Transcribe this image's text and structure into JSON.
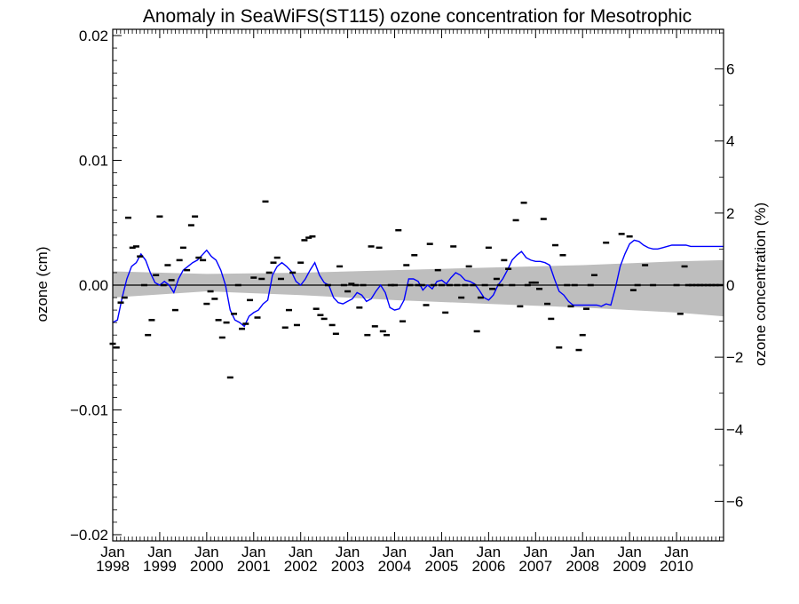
{
  "chart_data": {
    "type": "scatter",
    "title": "Anomaly in SeaWiFS(ST115) ozone concentration for Mesotrophic",
    "ylabel": "ozone (cm)",
    "ylabel_right": "ozone concentration (%)",
    "xlabel": "",
    "xlim": [
      1998.0,
      2011.0
    ],
    "ylim": [
      -0.0205,
      0.0205
    ],
    "ylim_right": [
      -7.1,
      7.1
    ],
    "x_ticks": [
      {
        "x": 1998,
        "label_top": "Jan",
        "label_bottom": "1998"
      },
      {
        "x": 1999,
        "label_top": "Jan",
        "label_bottom": "1999"
      },
      {
        "x": 2000,
        "label_top": "Jan",
        "label_bottom": "2000"
      },
      {
        "x": 2001,
        "label_top": "Jan",
        "label_bottom": "2001"
      },
      {
        "x": 2002,
        "label_top": "Jan",
        "label_bottom": "2002"
      },
      {
        "x": 2003,
        "label_top": "Jan",
        "label_bottom": "2003"
      },
      {
        "x": 2004,
        "label_top": "Jan",
        "label_bottom": "2004"
      },
      {
        "x": 2005,
        "label_top": "Jan",
        "label_bottom": "2005"
      },
      {
        "x": 2006,
        "label_top": "Jan",
        "label_bottom": "2006"
      },
      {
        "x": 2007,
        "label_top": "Jan",
        "label_bottom": "2007"
      },
      {
        "x": 2008,
        "label_top": "Jan",
        "label_bottom": "2008"
      },
      {
        "x": 2009,
        "label_top": "Jan",
        "label_bottom": "2009"
      },
      {
        "x": 2010,
        "label_top": "Jan",
        "label_bottom": "2010"
      }
    ],
    "y_ticks": [
      {
        "value": 0.02,
        "label": "0.02"
      },
      {
        "value": 0.01,
        "label": "0.01"
      },
      {
        "value": 0.0,
        "label": "0.00"
      },
      {
        "value": -0.01,
        "label": "−0.01"
      },
      {
        "value": -0.02,
        "label": "−0.02"
      }
    ],
    "y_right_ticks": [
      {
        "value": 6,
        "label": "6"
      },
      {
        "value": 4,
        "label": "4"
      },
      {
        "value": 2,
        "label": "2"
      },
      {
        "value": 0,
        "label": "0"
      },
      {
        "value": -2,
        "label": "−2"
      },
      {
        "value": -4,
        "label": "−4"
      },
      {
        "value": -6,
        "label": "−6"
      }
    ],
    "zero_line": 0.0,
    "trend_band": {
      "color": "#bebebe",
      "x": [
        1998.0,
        2000.0,
        2002.0,
        2004.0,
        2006.0,
        2008.0,
        2010.0,
        2011.0
      ],
      "upper": [
        0.0011,
        0.0009,
        0.001,
        0.0012,
        0.0014,
        0.0016,
        0.0019,
        0.002
      ],
      "lower": [
        -0.001,
        -0.0005,
        -0.0008,
        -0.0012,
        -0.0015,
        -0.0018,
        -0.0022,
        -0.0025
      ]
    },
    "series": [
      {
        "marker": "dash",
        "color": "#000000",
        "x": [
          1998.0,
          1998.08,
          1998.17,
          1998.25,
          1998.33,
          1998.42,
          1998.5,
          1998.58,
          1998.67,
          1998.75,
          1998.83,
          1998.92,
          1999.0,
          1999.08,
          1999.17,
          1999.25,
          1999.33,
          1999.42,
          1999.5,
          1999.58,
          1999.67,
          1999.75,
          1999.83,
          1999.92,
          2000.0,
          2000.08,
          2000.17,
          2000.25,
          2000.33,
          2000.42,
          2000.5,
          2000.58,
          2000.67,
          2000.75,
          2000.83,
          2000.92,
          2001.0,
          2001.08,
          2001.17,
          2001.25,
          2001.33,
          2001.42,
          2001.5,
          2001.58,
          2001.67,
          2001.75,
          2001.83,
          2001.92,
          2002.0,
          2002.08,
          2002.17,
          2002.25,
          2002.33,
          2002.42,
          2002.5,
          2002.58,
          2002.67,
          2002.75,
          2002.83,
          2002.92,
          2003.0,
          2003.08,
          2003.17,
          2003.25,
          2003.33,
          2003.42,
          2003.5,
          2003.58,
          2003.67,
          2003.75,
          2003.83,
          2003.92,
          2004.0,
          2004.08,
          2004.17,
          2004.25,
          2004.33,
          2004.42,
          2004.5,
          2004.58,
          2004.67,
          2004.75,
          2004.83,
          2004.92,
          2005.0,
          2005.08,
          2005.17,
          2005.25,
          2005.33,
          2005.42,
          2005.5,
          2005.58,
          2005.67,
          2005.75,
          2005.83,
          2005.92,
          2006.0,
          2006.08,
          2006.17,
          2006.25,
          2006.33,
          2006.42,
          2006.5,
          2006.58,
          2006.67,
          2006.75,
          2006.83,
          2006.92,
          2007.0,
          2007.08,
          2007.17,
          2007.25,
          2007.33,
          2007.42,
          2007.5,
          2007.58,
          2007.67,
          2007.75,
          2007.83,
          2007.92,
          2008.0,
          2008.08,
          2008.17,
          2008.25,
          2008.5,
          2008.83,
          2009.0,
          2009.08,
          2009.17,
          2009.33,
          2009.5,
          2010.0,
          2010.08,
          2010.17,
          2010.25,
          2010.33,
          2010.42,
          2010.5,
          2010.58,
          2010.67,
          2010.75,
          2010.83,
          2010.92
        ],
        "values": [
          -0.0047,
          -0.005,
          -0.0014,
          -0.001,
          0.0054,
          0.003,
          0.0031,
          0.0023,
          0.0,
          -0.004,
          -0.0028,
          0.0008,
          0.0055,
          0.0,
          0.0016,
          0.0004,
          -0.002,
          0.002,
          0.003,
          0.0012,
          0.0048,
          0.0055,
          0.0022,
          0.002,
          -0.0015,
          -0.0005,
          -0.0011,
          -0.0028,
          -0.0042,
          -0.003,
          -0.0074,
          -0.0023,
          0.0,
          -0.0035,
          -0.0031,
          -0.0012,
          0.0006,
          -0.0026,
          0.0005,
          0.0067,
          0.001,
          0.0018,
          0.0022,
          0.0005,
          -0.0034,
          -0.002,
          0.001,
          -0.0032,
          0.0018,
          0.0036,
          0.0038,
          0.0039,
          -0.0019,
          -0.0024,
          -0.0027,
          0.0,
          -0.0032,
          -0.0039,
          0.0015,
          0.0,
          -0.0005,
          0.0001,
          0.0,
          -0.0018,
          0.0,
          -0.004,
          0.0031,
          -0.0033,
          0.003,
          -0.0037,
          -0.004,
          0.0,
          0.0,
          0.0044,
          -0.0029,
          0.0016,
          0.0,
          0.0024,
          0.0,
          0.0,
          -0.0016,
          0.0033,
          0.0,
          0.0012,
          0.0,
          -0.0022,
          0.0,
          0.0031,
          0.0,
          -0.001,
          0.0,
          0.0015,
          0.0,
          -0.0037,
          -0.001,
          0.0,
          0.003,
          -0.0003,
          0.0005,
          0.0,
          0.002,
          0.0013,
          0.0,
          0.0052,
          -0.0017,
          0.0066,
          0.0,
          0.0002,
          0.0002,
          -0.0003,
          0.0053,
          -0.0015,
          -0.0027,
          0.0032,
          -0.005,
          0.0024,
          0.0,
          -0.0017,
          0.0,
          -0.0052,
          -0.004,
          -0.0019,
          0.0,
          0.0008,
          0.0034,
          0.0041,
          0.0039,
          -0.0004,
          0.0,
          0.0016,
          0.0,
          0.0,
          -0.0023,
          0.0015,
          0.0,
          0.0,
          0.0,
          0.0,
          0.0,
          0.0,
          0.0,
          0.0,
          0.0
        ]
      },
      {
        "marker": "line",
        "color": "#0000ff",
        "x": [
          1998.0,
          1998.1,
          1998.2,
          1998.3,
          1998.4,
          1998.5,
          1998.6,
          1998.7,
          1998.8,
          1998.9,
          1999.0,
          1999.1,
          1999.2,
          1999.3,
          1999.4,
          1999.5,
          1999.6,
          1999.7,
          1999.8,
          1999.9,
          2000.0,
          2000.1,
          2000.2,
          2000.3,
          2000.4,
          2000.5,
          2000.6,
          2000.7,
          2000.8,
          2000.9,
          2001.0,
          2001.1,
          2001.2,
          2001.3,
          2001.4,
          2001.5,
          2001.6,
          2001.7,
          2001.8,
          2001.9,
          2002.0,
          2002.1,
          2002.2,
          2002.3,
          2002.4,
          2002.5,
          2002.6,
          2002.7,
          2002.8,
          2002.9,
          2003.0,
          2003.1,
          2003.2,
          2003.3,
          2003.4,
          2003.5,
          2003.6,
          2003.7,
          2003.8,
          2003.9,
          2004.0,
          2004.1,
          2004.2,
          2004.3,
          2004.4,
          2004.5,
          2004.6,
          2004.7,
          2004.8,
          2004.9,
          2005.0,
          2005.1,
          2005.2,
          2005.3,
          2005.4,
          2005.5,
          2005.6,
          2005.7,
          2005.8,
          2005.9,
          2006.0,
          2006.1,
          2006.2,
          2006.3,
          2006.4,
          2006.5,
          2006.6,
          2006.7,
          2006.8,
          2006.9,
          2007.0,
          2007.1,
          2007.2,
          2007.3,
          2007.4,
          2007.5,
          2007.6,
          2007.7,
          2007.8,
          2007.9,
          2008.0,
          2008.1,
          2008.2,
          2008.3,
          2008.4,
          2008.5,
          2008.6,
          2008.7,
          2008.8,
          2008.9,
          2009.0,
          2009.1,
          2009.2,
          2009.3,
          2009.4,
          2009.5,
          2009.6,
          2009.7,
          2009.8,
          2009.9,
          2010.0,
          2010.1,
          2010.2,
          2010.3,
          2010.4,
          2010.5,
          2010.6,
          2010.7,
          2010.8,
          2010.9,
          2011.0
        ],
        "values": [
          -0.003,
          -0.0028,
          -0.001,
          0.0005,
          0.0015,
          0.0018,
          0.0025,
          0.002,
          0.001,
          0.0002,
          0.0,
          0.0003,
          0.0,
          -0.0006,
          0.0005,
          0.0012,
          0.0015,
          0.0018,
          0.002,
          0.0024,
          0.0028,
          0.0023,
          0.002,
          0.0012,
          0.0,
          -0.002,
          -0.0028,
          -0.003,
          -0.0033,
          -0.0025,
          -0.0022,
          -0.002,
          -0.0015,
          -0.0012,
          0.0008,
          0.0015,
          0.0018,
          0.0015,
          0.0011,
          0.0003,
          0.0,
          0.0005,
          0.0012,
          0.0018,
          0.0008,
          0.0002,
          0.0,
          -0.001,
          -0.0014,
          -0.0015,
          -0.0013,
          -0.0011,
          -0.0006,
          -0.0008,
          -0.0013,
          -0.0011,
          -0.0005,
          0.0,
          -0.0006,
          -0.0018,
          -0.002,
          -0.0019,
          -0.0012,
          0.0005,
          0.0005,
          0.0003,
          -0.0004,
          0.0,
          -0.0003,
          0.0003,
          0.0004,
          0.0001,
          0.0006,
          0.001,
          0.0008,
          0.0004,
          0.0003,
          0.0001,
          -0.0004,
          -0.001,
          -0.0012,
          -0.0008,
          0.0,
          0.0005,
          0.0012,
          0.002,
          0.0024,
          0.0027,
          0.0022,
          0.002,
          0.0019,
          0.0019,
          0.0018,
          0.0016,
          0.0005,
          -0.0005,
          -0.0008,
          -0.0013,
          -0.0016,
          -0.0016,
          -0.0016,
          -0.0016,
          -0.0016,
          -0.0016,
          -0.0017,
          -0.0015,
          -0.0016,
          -0.0002,
          0.0015,
          0.0025,
          0.0033,
          0.0036,
          0.0035,
          0.0032,
          0.003,
          0.0029,
          0.0029,
          0.003,
          0.0031,
          0.0032,
          0.0032,
          0.0032,
          0.0032,
          0.0031,
          0.0031,
          0.0031,
          0.0031,
          0.0031,
          0.0031,
          0.0031,
          0.0031
        ]
      }
    ]
  }
}
